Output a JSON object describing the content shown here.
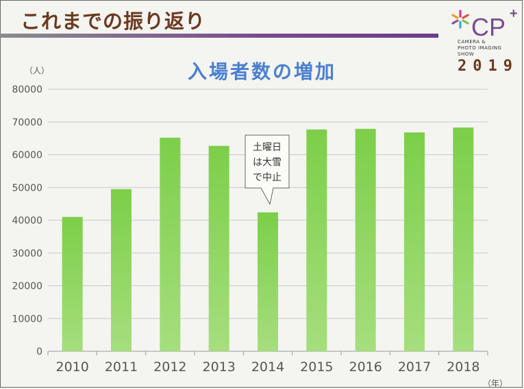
{
  "header": {
    "title": "これまでの振り返り"
  },
  "logo": {
    "brand": "CP",
    "plus": "+",
    "text_lines": [
      "CAMERA &",
      "PHOTO IMAGING",
      "SHOW"
    ],
    "year": "2019",
    "icon": "asterisk-logo-icon"
  },
  "chart_data": {
    "type": "bar",
    "title": "入場者数の増加",
    "ylabel": "（人）",
    "xlabel": "（年）",
    "ylim": [
      0,
      80000
    ],
    "yticks": [
      0,
      10000,
      20000,
      30000,
      40000,
      50000,
      60000,
      70000,
      80000
    ],
    "categories": [
      "2010",
      "2011",
      "2012",
      "2013",
      "2014",
      "2015",
      "2016",
      "2017",
      "2018"
    ],
    "values": [
      41000,
      49500,
      65200,
      62700,
      42400,
      67700,
      67900,
      66800,
      68300
    ],
    "grid": true,
    "bar_color": "#7fd24e",
    "annotation": {
      "category": "2014",
      "lines": [
        "土曜日",
        "は大雪",
        "で中止"
      ]
    }
  }
}
